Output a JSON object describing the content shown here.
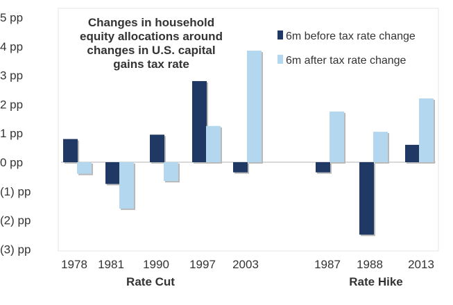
{
  "chart_data": {
    "type": "bar",
    "title_lines": [
      "Changes in household",
      "equity allocations around",
      "changes in U.S. capital",
      "gains tax rate"
    ],
    "categories": [
      "1978",
      "1981",
      "1990",
      "1997",
      "2003",
      "1987",
      "1988",
      "2013"
    ],
    "groups": [
      {
        "name": "Rate Cut",
        "categories": [
          "1978",
          "1981",
          "1990",
          "1997",
          "2003"
        ]
      },
      {
        "name": "Rate Hike",
        "categories": [
          "1987",
          "1988",
          "2013"
        ]
      }
    ],
    "series": [
      {
        "name": "6m before tax rate change",
        "color": "#1f3864",
        "values": [
          0.8,
          -0.75,
          0.95,
          2.8,
          -0.35,
          -0.35,
          -2.5,
          0.6
        ]
      },
      {
        "name": "6m after tax rate change",
        "color": "#b4d7f0",
        "values": [
          -0.4,
          -1.6,
          -0.65,
          1.25,
          3.85,
          1.75,
          1.05,
          2.2
        ]
      }
    ],
    "y_ticks": [
      {
        "value": 5,
        "label": "5 pp"
      },
      {
        "value": 4,
        "label": "4 pp"
      },
      {
        "value": 3,
        "label": "3 pp"
      },
      {
        "value": 2,
        "label": "2 pp"
      },
      {
        "value": 1,
        "label": "1 pp"
      },
      {
        "value": 0,
        "label": "0 pp"
      },
      {
        "value": -1,
        "label": "(1) pp"
      },
      {
        "value": -2,
        "label": "(2) pp"
      },
      {
        "value": -3,
        "label": "(3) pp"
      }
    ],
    "ylim": [
      -3,
      5
    ],
    "legend_position": "top-right",
    "grid": false
  }
}
